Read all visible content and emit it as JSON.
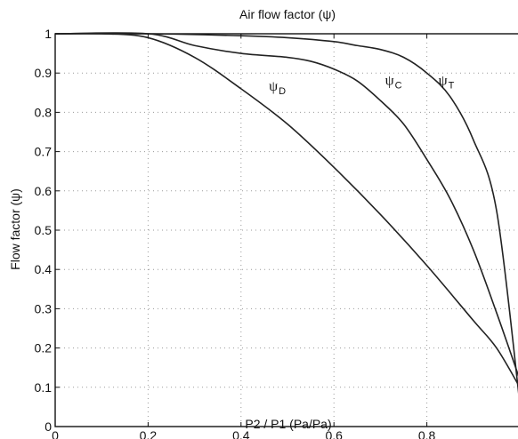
{
  "chart_data": {
    "type": "line",
    "title": "Air flow factor (ψ)",
    "xlabel": "P2 / P1 (Pa/Pa)",
    "ylabel": "Flow factor (ψ)",
    "xlim": [
      0,
      1
    ],
    "ylim": [
      0,
      1
    ],
    "grid": true,
    "x_ticks": [
      "0",
      "0.2",
      "0.4",
      "0.6",
      "0.8"
    ],
    "y_ticks": [
      "0",
      "0.1",
      "0.2",
      "0.3",
      "0.4",
      "0.5",
      "0.6",
      "0.7",
      "0.8",
      "0.9",
      "1"
    ],
    "series": [
      {
        "name": "ψD",
        "label_main": "ψ",
        "label_sub": "D",
        "x": [
          0,
          0.1,
          0.2,
          0.3,
          0.4,
          0.5,
          0.6,
          0.7,
          0.8,
          0.9,
          0.95,
          1.0
        ],
        "values": [
          1.0,
          1.0,
          0.99,
          0.94,
          0.86,
          0.77,
          0.66,
          0.54,
          0.41,
          0.27,
          0.2,
          0.1
        ]
      },
      {
        "name": "ψC",
        "label_main": "ψ",
        "label_sub": "C",
        "x": [
          0,
          0.2,
          0.3,
          0.4,
          0.5,
          0.55,
          0.6,
          0.65,
          0.7,
          0.75,
          0.8,
          0.85,
          0.9,
          0.95,
          1.0
        ],
        "values": [
          1.0,
          1.0,
          0.97,
          0.95,
          0.94,
          0.93,
          0.91,
          0.88,
          0.83,
          0.77,
          0.68,
          0.58,
          0.45,
          0.29,
          0.12
        ]
      },
      {
        "name": "ψT",
        "label_main": "ψ",
        "label_sub": "T",
        "x": [
          0,
          0.2,
          0.4,
          0.5,
          0.6,
          0.65,
          0.7,
          0.75,
          0.8,
          0.85,
          0.9,
          0.95,
          1.0
        ],
        "values": [
          1.0,
          1.0,
          0.995,
          0.99,
          0.98,
          0.97,
          0.96,
          0.94,
          0.9,
          0.84,
          0.73,
          0.55,
          0.06
        ]
      }
    ]
  }
}
